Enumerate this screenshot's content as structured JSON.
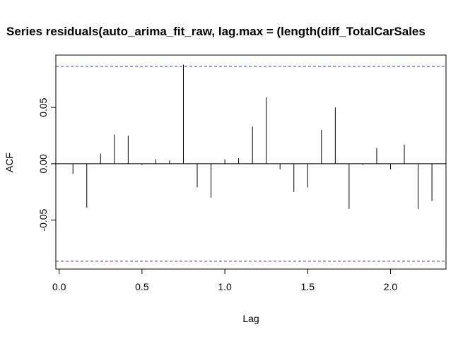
{
  "chart_data": {
    "type": "bar",
    "title": "Series residuals(auto_arima_fit_raw, lag.max = (length(diff_TotalCarSales",
    "xlabel": "Lag",
    "ylabel": "ACF",
    "xlim": [
      -0.02,
      2.335
    ],
    "ylim": [
      -0.0935,
      0.0965
    ],
    "x_ticks": [
      0.0,
      0.5,
      1.0,
      1.5,
      2.0
    ],
    "x_tick_labels": [
      "0.0",
      "0.5",
      "1.0",
      "1.5",
      "2.0"
    ],
    "y_ticks": [
      -0.05,
      0.0,
      0.05
    ],
    "y_tick_labels": [
      "-0.05",
      "0.00",
      "0.05"
    ],
    "confidence_bound": 0.0865,
    "confidence_color": "#3333ff",
    "lags": [
      0.0833,
      0.1667,
      0.25,
      0.3333,
      0.4167,
      0.5,
      0.5833,
      0.6667,
      0.75,
      0.8333,
      0.9167,
      1.0,
      1.0833,
      1.1667,
      1.25,
      1.3333,
      1.4167,
      1.5,
      1.5833,
      1.6667,
      1.75,
      1.8333,
      1.9167,
      2.0,
      2.0833,
      2.1667,
      2.25
    ],
    "values": [
      -0.009,
      -0.039,
      0.009,
      0.026,
      0.025,
      -0.001,
      0.004,
      0.003,
      0.088,
      -0.021,
      -0.03,
      0.004,
      0.005,
      0.033,
      0.059,
      -0.005,
      -0.025,
      -0.021,
      0.03,
      0.05,
      -0.04,
      -0.001,
      0.014,
      -0.005,
      0.017,
      -0.04,
      -0.033
    ]
  }
}
